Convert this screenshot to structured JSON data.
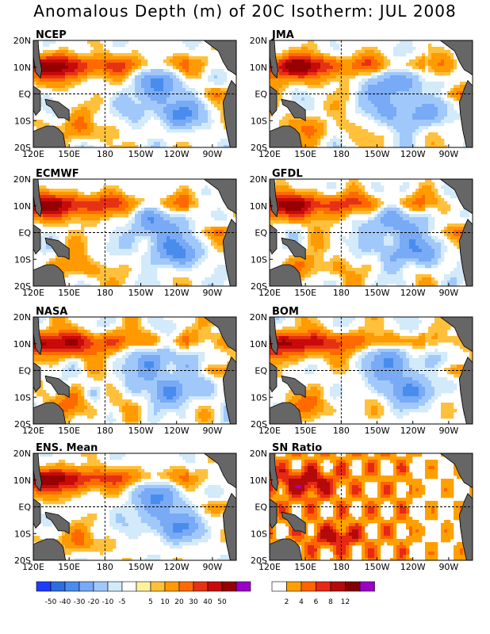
{
  "title": "Anomalous Depth (m) of 20C Isotherm: JUL 2008",
  "chart_data": {
    "type": "heatmap",
    "title": "Anomalous Depth (m) of 20C Isotherm: JUL 2008",
    "x_ticks": [
      "120E",
      "150E",
      "180",
      "150W",
      "120W",
      "90W"
    ],
    "y_ticks": [
      "20N",
      "10N",
      "EQ",
      "10S",
      "20S"
    ],
    "xlim_deg_east": [
      120,
      290
    ],
    "ylim_deg_north": [
      -20,
      20
    ],
    "reference_lines": {
      "dateline": "180",
      "equator": "EQ"
    },
    "land_color": "#666666",
    "panels": [
      {
        "name": "NCEP",
        "kind": "anomaly",
        "seed": 3
      },
      {
        "name": "JMA",
        "kind": "anomaly",
        "seed": 7
      },
      {
        "name": "ECMWF",
        "kind": "anomaly",
        "seed": 11
      },
      {
        "name": "GFDL",
        "kind": "anomaly",
        "seed": 13
      },
      {
        "name": "NASA",
        "kind": "anomaly",
        "seed": 17
      },
      {
        "name": "BOM",
        "kind": "anomaly",
        "seed": 19
      },
      {
        "name": "ENS. Mean",
        "kind": "anomaly",
        "seed": 23
      },
      {
        "name": "SN Ratio",
        "kind": "snr",
        "seed": 29
      }
    ],
    "anomaly_colorbar": {
      "colors": [
        "#1e3cff",
        "#2d6edc",
        "#4a8cee",
        "#78aaf5",
        "#a0c8fa",
        "#d2eafa",
        "#ffffff",
        "#fff0a0",
        "#ffc03c",
        "#ff9a00",
        "#ff6a00",
        "#e63214",
        "#c80a0a",
        "#960000",
        "#9b00c8"
      ],
      "labels": [
        "-50",
        "-40",
        "-30",
        "-20",
        "-10",
        "-5",
        "5",
        "10",
        "20",
        "30",
        "40",
        "50"
      ]
    },
    "snr_colorbar": {
      "colors": [
        "#ffffff",
        "#ffa000",
        "#ff6400",
        "#e62814",
        "#b40a0a",
        "#820000",
        "#9b00c8"
      ],
      "labels": [
        "2",
        "4",
        "6",
        "8",
        "12"
      ]
    }
  }
}
